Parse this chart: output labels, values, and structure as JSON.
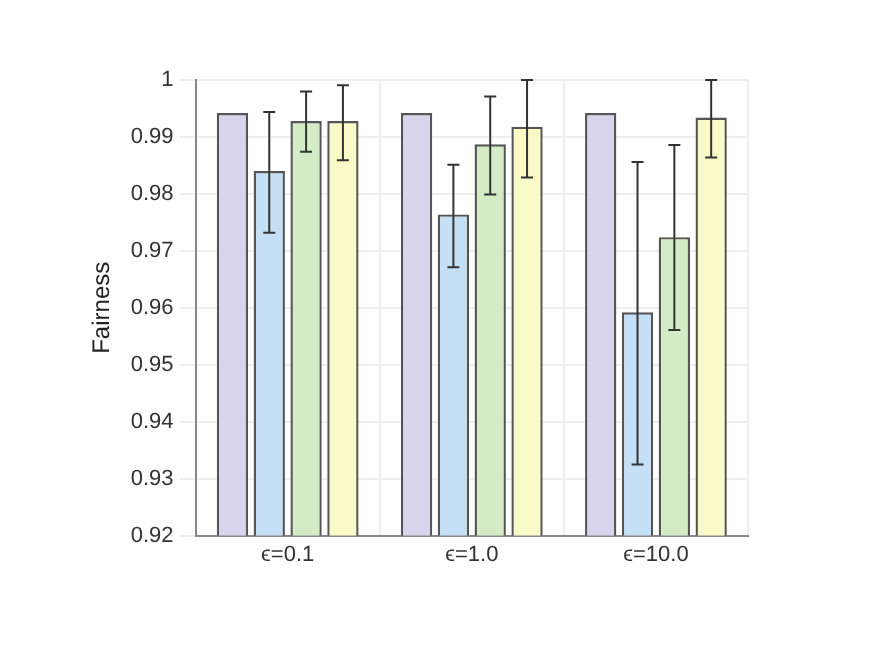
{
  "chart_data": {
    "type": "bar",
    "ylabel": "Fairness",
    "categories": [
      "ϵ=0.1",
      "ϵ=1.0",
      "ϵ=10.0"
    ],
    "series": [
      {
        "color": "#d8d4ee",
        "values": [
          0.9942,
          0.9942,
          0.9942
        ]
      },
      {
        "color": "#c5e0f5",
        "values": [
          0.984,
          0.9764,
          0.9592
        ],
        "errors": [
          [
            0.9732,
            0.9944
          ],
          [
            0.9671,
            0.9851
          ],
          [
            0.9325,
            0.9856
          ]
        ]
      },
      {
        "color": "#d4ecc6",
        "values": [
          0.9928,
          0.9887,
          0.9724
        ],
        "errors": [
          [
            0.9874,
            0.998
          ],
          [
            0.9799,
            0.9971
          ],
          [
            0.9561,
            0.9886
          ]
        ]
      },
      {
        "color": "#fafac8",
        "values": [
          0.9928,
          0.9918,
          0.9934
        ],
        "errors": [
          [
            0.9859,
            0.9991
          ],
          [
            0.9829,
            1.0
          ],
          [
            0.9864,
            1.0
          ]
        ]
      }
    ],
    "ylim": [
      0.92,
      1
    ],
    "yticks": [
      0.92,
      0.93,
      0.94,
      0.95,
      0.96,
      0.97,
      0.98,
      0.99,
      1
    ],
    "grid": true
  }
}
